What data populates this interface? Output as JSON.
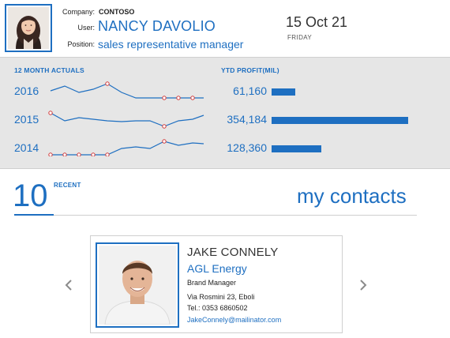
{
  "profile": {
    "company_label": "Company:",
    "company": "CONTOSO",
    "user_label": "User:",
    "user": "NANCY DAVOLIO",
    "position_label": "Position:",
    "position": "sales representative manager",
    "avatar_icon": "person-photo"
  },
  "date": {
    "display": "15 Oct 21",
    "weekday": "FRIDAY"
  },
  "stats": {
    "actuals_title": "12 MONTH ACTUALS",
    "profit_title": "YTD PROFIT(MIL)",
    "rows": [
      {
        "year": "2016",
        "profit": "61,160",
        "profit_value": 61160
      },
      {
        "year": "2015",
        "profit": "354,184",
        "profit_value": 354184
      },
      {
        "year": "2014",
        "profit": "128,360",
        "profit_value": 128360
      }
    ]
  },
  "contacts": {
    "count": "10",
    "recent_label": "RECENT",
    "title": "my contacts",
    "prev_icon": "chevron-left-icon",
    "next_icon": "chevron-right-icon",
    "card": {
      "name": "JAKE CONNELY",
      "company": "AGL Energy",
      "role": "Brand Manager",
      "address": "Via Rosmini 23, Eboli",
      "phone": "Tel.: 0353 6860502",
      "email": "JakeConnely@mailinator.com",
      "photo_icon": "person-photo"
    }
  },
  "colors": {
    "accent": "#1e6fc1",
    "band": "#e6e6e6",
    "marker": "#d23a3a"
  }
}
